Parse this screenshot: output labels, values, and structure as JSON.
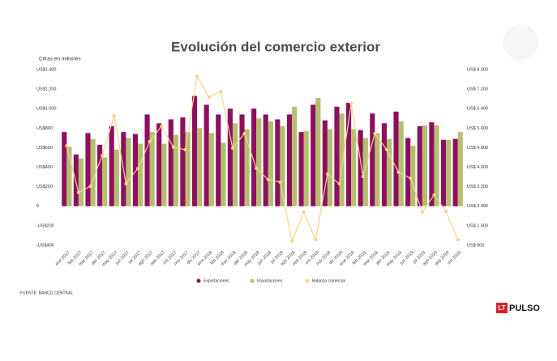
{
  "chart_data": {
    "type": "bar",
    "title": "Evolución del comercio exterior",
    "y_label": "Cifras en millones",
    "source": "FUENTE: BANCO CENTRAL",
    "logo": [
      "LT",
      "PULSO"
    ],
    "categories": [
      "ene 2017",
      "feb 2017",
      "mar 2017",
      "abr 2017",
      "may 2017",
      "jun 2017",
      "jul 2017",
      "ago 2017",
      "sep 2017",
      "oct 2017",
      "nov 2017",
      "dic 2017",
      "ene 2018",
      "feb 2018",
      "mar 2018",
      "abr 2018",
      "may 2018",
      "jun 2018",
      "jul 2018",
      "ago 2018",
      "sep 2018",
      "oct 2018",
      "nov 2018",
      "dic 2018",
      "ene 2019",
      "feb 2019",
      "mar 2019",
      "abr 2019",
      "may 2019",
      "jun 2019",
      "jul 2019",
      "ago 2019",
      "sep 2019",
      "oct 2019"
    ],
    "series": [
      {
        "name": "Exportaciones",
        "type": "bar",
        "color": "#8e0e5f",
        "values": [
          760,
          530,
          750,
          630,
          820,
          760,
          740,
          940,
          850,
          890,
          910,
          1130,
          1040,
          940,
          1000,
          940,
          1000,
          940,
          890,
          940,
          760,
          1040,
          880,
          1020,
          1060,
          780,
          950,
          850,
          970,
          700,
          820,
          860,
          680,
          690
        ]
      },
      {
        "name": "Importaciones",
        "type": "bar",
        "color": "#b5bf6e",
        "values": [
          610,
          490,
          690,
          500,
          580,
          700,
          640,
          760,
          640,
          730,
          760,
          800,
          750,
          650,
          850,
          790,
          900,
          870,
          820,
          1020,
          770,
          1110,
          790,
          950,
          790,
          700,
          750,
          690,
          870,
          620,
          830,
          830,
          680,
          760
        ]
      },
      {
        "name": "Balanza comercial",
        "type": "line",
        "axis": "y2",
        "color": "#f7d48c",
        "values": [
          4880,
          2960,
          3220,
          4480,
          6110,
          3320,
          3950,
          5050,
          5680,
          4820,
          4720,
          7730,
          6870,
          7100,
          4780,
          5380,
          3950,
          3490,
          3390,
          970,
          2160,
          1030,
          3720,
          3320,
          6610,
          3620,
          5380,
          4720,
          3790,
          3550,
          2160,
          2860,
          2190,
          1030
        ]
      }
    ],
    "ylim": [
      -400,
      1400
    ],
    "yticks": [
      {
        "value": -400,
        "label": "-US$400"
      },
      {
        "value": -200,
        "label": "-US$200"
      },
      0,
      {
        "value": 200,
        "label": "US$200"
      },
      {
        "value": 400,
        "label": "US$400"
      },
      {
        "value": 600,
        "label": "US$600"
      },
      {
        "value": 800,
        "label": "US$800"
      },
      {
        "value": 1000,
        "label": "US$1.000"
      },
      {
        "value": 1200,
        "label": "US$1.200"
      },
      {
        "value": 1400,
        "label": "US$1.400"
      }
    ],
    "y2lim": [
      800,
      8000
    ],
    "y2ticks": [
      {
        "value": 800,
        "label": "US$ 800"
      },
      {
        "value": 1600,
        "label": "US$ 1.600"
      },
      {
        "value": 2400,
        "label": "US$ 2.400"
      },
      {
        "value": 3200,
        "label": "US$ 3.200"
      },
      {
        "value": 4000,
        "label": "US$ 4.000"
      },
      {
        "value": 4800,
        "label": "US$ 4.800"
      },
      {
        "value": 5600,
        "label": "US$ 5.600"
      },
      {
        "value": 6400,
        "label": "US$ 6.400"
      },
      {
        "value": 7200,
        "label": "US$ 7.200"
      },
      {
        "value": 8000,
        "label": "US$ 8.000"
      }
    ],
    "grid": false,
    "legend": "bottom"
  }
}
